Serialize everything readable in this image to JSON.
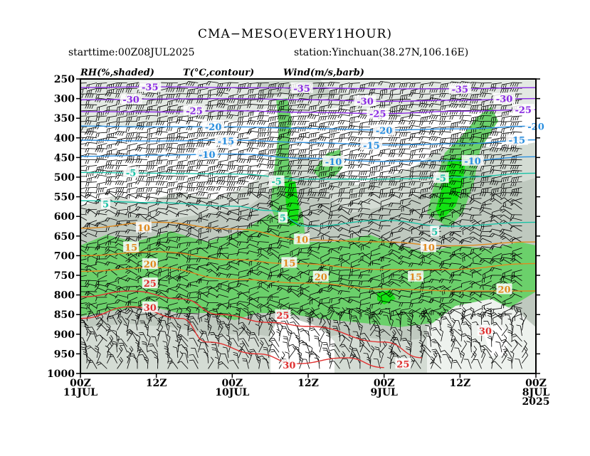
{
  "title": "CMA−MESO(EVERY1HOUR)",
  "starttime": "starttime:00Z08JUL2025",
  "station": "station:Yinchuan(38.27N,106.16E)",
  "legend": {
    "rh": "RH(%,shaded)",
    "t": "T(°C,contour)",
    "wind": "Wind(m/s,barb)"
  },
  "colors": {
    "rh_70": "#d4dcd4",
    "rh_80": "#bfc9bf",
    "rh_90": "#6bd06b",
    "rh_95": "#13e213",
    "t_cold": "#8a2be2",
    "t_mid": "#2a8fe0",
    "t_teal": "#19c2a6",
    "t_warm": "#e08a1e",
    "t_hot": "#e03030",
    "t_vhot": "#d21aa8"
  },
  "chart_data": {
    "type": "heatmap",
    "title": "CMA−MESO(EVERY1HOUR)",
    "xlabel": "",
    "ylabel": "",
    "y_axis": {
      "levels_hpa": [
        250,
        300,
        350,
        400,
        450,
        500,
        550,
        600,
        650,
        700,
        750,
        800,
        850,
        900,
        950,
        1000
      ],
      "inverted": true
    },
    "x_axis": {
      "direction": "time decreasing left to right",
      "ticks": [
        {
          "hours": 72,
          "l1": "00Z",
          "l2": "11JUL",
          "l3": ""
        },
        {
          "hours": 60,
          "l1": "12Z",
          "l2": "",
          "l3": ""
        },
        {
          "hours": 48,
          "l1": "00Z",
          "l2": "10JUL",
          "l3": ""
        },
        {
          "hours": 36,
          "l1": "12Z",
          "l2": "",
          "l3": ""
        },
        {
          "hours": 24,
          "l1": "00Z",
          "l2": "9JUL",
          "l3": ""
        },
        {
          "hours": 12,
          "l1": "12Z",
          "l2": "",
          "l3": ""
        },
        {
          "hours": 0,
          "l1": "00Z",
          "l2": "8JUL",
          "l3": "2025"
        }
      ]
    },
    "temperature_contours": [
      {
        "value": -35,
        "label": "-35",
        "color": "#8a2be2",
        "points": [
          [
            72,
            272
          ],
          [
            60,
            270
          ],
          [
            48,
            272
          ],
          [
            36,
            273
          ],
          [
            24,
            275
          ],
          [
            12,
            275
          ],
          [
            0,
            272
          ]
        ],
        "labels_at": [
          [
            61,
            272
          ],
          [
            37,
            275
          ],
          [
            12,
            277
          ]
        ]
      },
      {
        "value": -30,
        "label": "-30",
        "color": "#8a2be2",
        "points": [
          [
            72,
            303
          ],
          [
            60,
            301
          ],
          [
            48,
            300
          ],
          [
            36,
            303
          ],
          [
            24,
            307
          ],
          [
            12,
            304
          ],
          [
            0,
            300
          ]
        ],
        "labels_at": [
          [
            64,
            303
          ],
          [
            27,
            308
          ],
          [
            5,
            302
          ]
        ]
      },
      {
        "value": -25,
        "label": "-25",
        "color": "#8a2be2",
        "points": [
          [
            72,
            333
          ],
          [
            60,
            334
          ],
          [
            48,
            331
          ],
          [
            36,
            335
          ],
          [
            24,
            338
          ],
          [
            12,
            332
          ],
          [
            0,
            328
          ]
        ],
        "labels_at": [
          [
            54,
            332
          ],
          [
            25,
            340
          ],
          [
            2,
            330
          ]
        ]
      },
      {
        "value": -20,
        "label": "-20",
        "color": "#2a8fe0",
        "points": [
          [
            72,
            370
          ],
          [
            60,
            372
          ],
          [
            48,
            372
          ],
          [
            36,
            376
          ],
          [
            24,
            380
          ],
          [
            12,
            377
          ],
          [
            0,
            370
          ]
        ],
        "labels_at": [
          [
            51,
            373
          ],
          [
            24,
            382
          ],
          [
            0,
            372
          ]
        ]
      },
      {
        "value": -15,
        "label": "-15",
        "color": "#2a8fe0",
        "points": [
          [
            72,
            406
          ],
          [
            60,
            408
          ],
          [
            48,
            406
          ],
          [
            36,
            412
          ],
          [
            24,
            418
          ],
          [
            12,
            415
          ],
          [
            0,
            405
          ]
        ],
        "labels_at": [
          [
            49,
            409
          ],
          [
            26,
            420
          ],
          [
            3,
            407
          ]
        ]
      },
      {
        "value": -10,
        "label": "-10",
        "color": "#2a8fe0",
        "points": [
          [
            72,
            447
          ],
          [
            60,
            444
          ],
          [
            48,
            441
          ],
          [
            36,
            452
          ],
          [
            24,
            460
          ],
          [
            12,
            458
          ],
          [
            0,
            448
          ]
        ],
        "labels_at": [
          [
            52,
            444
          ],
          [
            32,
            462
          ],
          [
            10,
            460
          ]
        ]
      },
      {
        "value": -5,
        "label": "-5",
        "color": "#19c2a6",
        "points": [
          [
            72,
            488
          ],
          [
            60,
            490
          ],
          [
            48,
            492
          ],
          [
            36,
            505
          ],
          [
            24,
            505
          ],
          [
            12,
            500
          ],
          [
            0,
            490
          ]
        ],
        "labels_at": [
          [
            64,
            490
          ],
          [
            41,
            512
          ],
          [
            15,
            504
          ]
        ]
      },
      {
        "value": 5,
        "label": "5",
        "color": "#19c2a6",
        "points": [
          [
            72,
            560
          ],
          [
            60,
            565
          ],
          [
            48,
            574
          ],
          [
            42,
            585
          ],
          [
            36,
            625
          ],
          [
            24,
            610
          ],
          [
            14,
            625
          ],
          [
            0,
            615
          ]
        ],
        "labels_at": [
          [
            68,
            570
          ],
          [
            40,
            605
          ],
          [
            16,
            640
          ]
        ]
      },
      {
        "value": 10,
        "label": "10",
        "color": "#e08a1e",
        "points": [
          [
            72,
            630
          ],
          [
            60,
            615
          ],
          [
            48,
            632
          ],
          [
            36,
            660
          ],
          [
            24,
            665
          ],
          [
            14,
            675
          ],
          [
            0,
            665
          ]
        ],
        "labels_at": [
          [
            62,
            630
          ],
          [
            37,
            660
          ],
          [
            17,
            680
          ]
        ]
      },
      {
        "value": 15,
        "label": "15",
        "color": "#e08a1e",
        "points": [
          [
            72,
            700
          ],
          [
            60,
            690
          ],
          [
            48,
            710
          ],
          [
            39,
            720
          ],
          [
            24,
            735
          ],
          [
            14,
            735
          ],
          [
            0,
            720
          ]
        ],
        "labels_at": [
          [
            64,
            680
          ],
          [
            39,
            720
          ],
          [
            19,
            755
          ]
        ]
      },
      {
        "value": 20,
        "label": "20",
        "color": "#e08a1e",
        "points": [
          [
            72,
            740
          ],
          [
            60,
            730
          ],
          [
            48,
            760
          ],
          [
            36,
            770
          ],
          [
            24,
            785
          ],
          [
            12,
            790
          ],
          [
            0,
            790
          ]
        ],
        "labels_at": [
          [
            61,
            723
          ],
          [
            34,
            755
          ],
          [
            5,
            787
          ]
        ]
      },
      {
        "value": 25,
        "label": "25",
        "color": "#e03030",
        "points": [
          [
            72,
            805
          ],
          [
            64,
            790
          ],
          [
            56,
            810
          ],
          [
            50,
            850
          ],
          [
            42,
            870
          ],
          [
            36,
            880
          ],
          [
            24,
            920
          ],
          [
            18,
            960
          ]
        ],
        "labels_at": [
          [
            61,
            772
          ],
          [
            40,
            853
          ],
          [
            21,
            977
          ]
        ]
      },
      {
        "value": 30,
        "label": "30",
        "color": "#e03030",
        "points": [
          [
            72,
            860
          ],
          [
            64,
            830
          ],
          [
            56,
            860
          ],
          [
            52,
            920
          ],
          [
            44,
            950
          ],
          [
            38,
            975
          ],
          [
            30,
            960
          ],
          [
            24,
            985
          ]
        ],
        "labels_at": [
          [
            61,
            833
          ],
          [
            39,
            980
          ],
          [
            8,
            893
          ]
        ]
      }
    ]
  }
}
